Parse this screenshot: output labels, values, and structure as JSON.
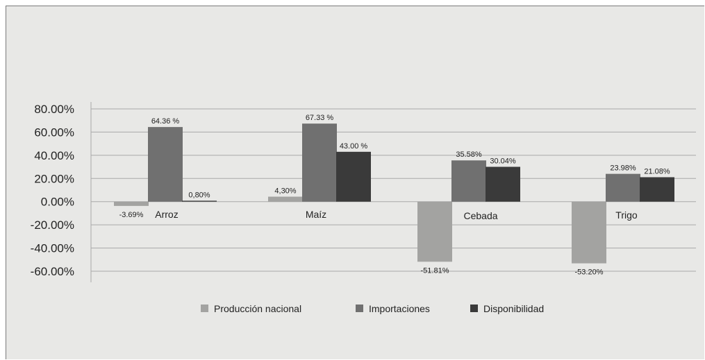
{
  "chart_data": {
    "type": "bar",
    "title": "",
    "xlabel": "",
    "ylabel": "",
    "categories": [
      "Arroz",
      "Maíz",
      "Cebada",
      "Trigo"
    ],
    "ylim": [
      -60,
      80
    ],
    "yticks": [
      80,
      60,
      40,
      20,
      0,
      -20,
      -40,
      -60
    ],
    "ytick_labels": [
      "80.00%",
      "60.00%",
      "40.00%",
      "20.00%",
      "0.00%",
      "-20.00%",
      "-40.00%",
      "-60.00%"
    ],
    "grid": true,
    "legend_position": "bottom",
    "series": [
      {
        "name": "Producción nacional",
        "color": "#a3a3a1",
        "values": [
          -3.69,
          4.3,
          -51.81,
          -53.2
        ],
        "labels": [
          "-3.69%",
          "4,30%",
          "-51.81%",
          "-53.20%"
        ]
      },
      {
        "name": "Importaciones",
        "color": "#707070",
        "values": [
          64.36,
          67.33,
          35.58,
          23.98
        ],
        "labels": [
          "64.36 %",
          "67.33 %",
          "35.58%",
          "23.98%"
        ]
      },
      {
        "name": "Disponibilidad",
        "color": "#3a3a3a",
        "values": [
          0.8,
          43.0,
          30.04,
          21.08
        ],
        "labels": [
          "0,80%",
          "43.00 %",
          "30.04%",
          "21.08%"
        ]
      }
    ]
  }
}
